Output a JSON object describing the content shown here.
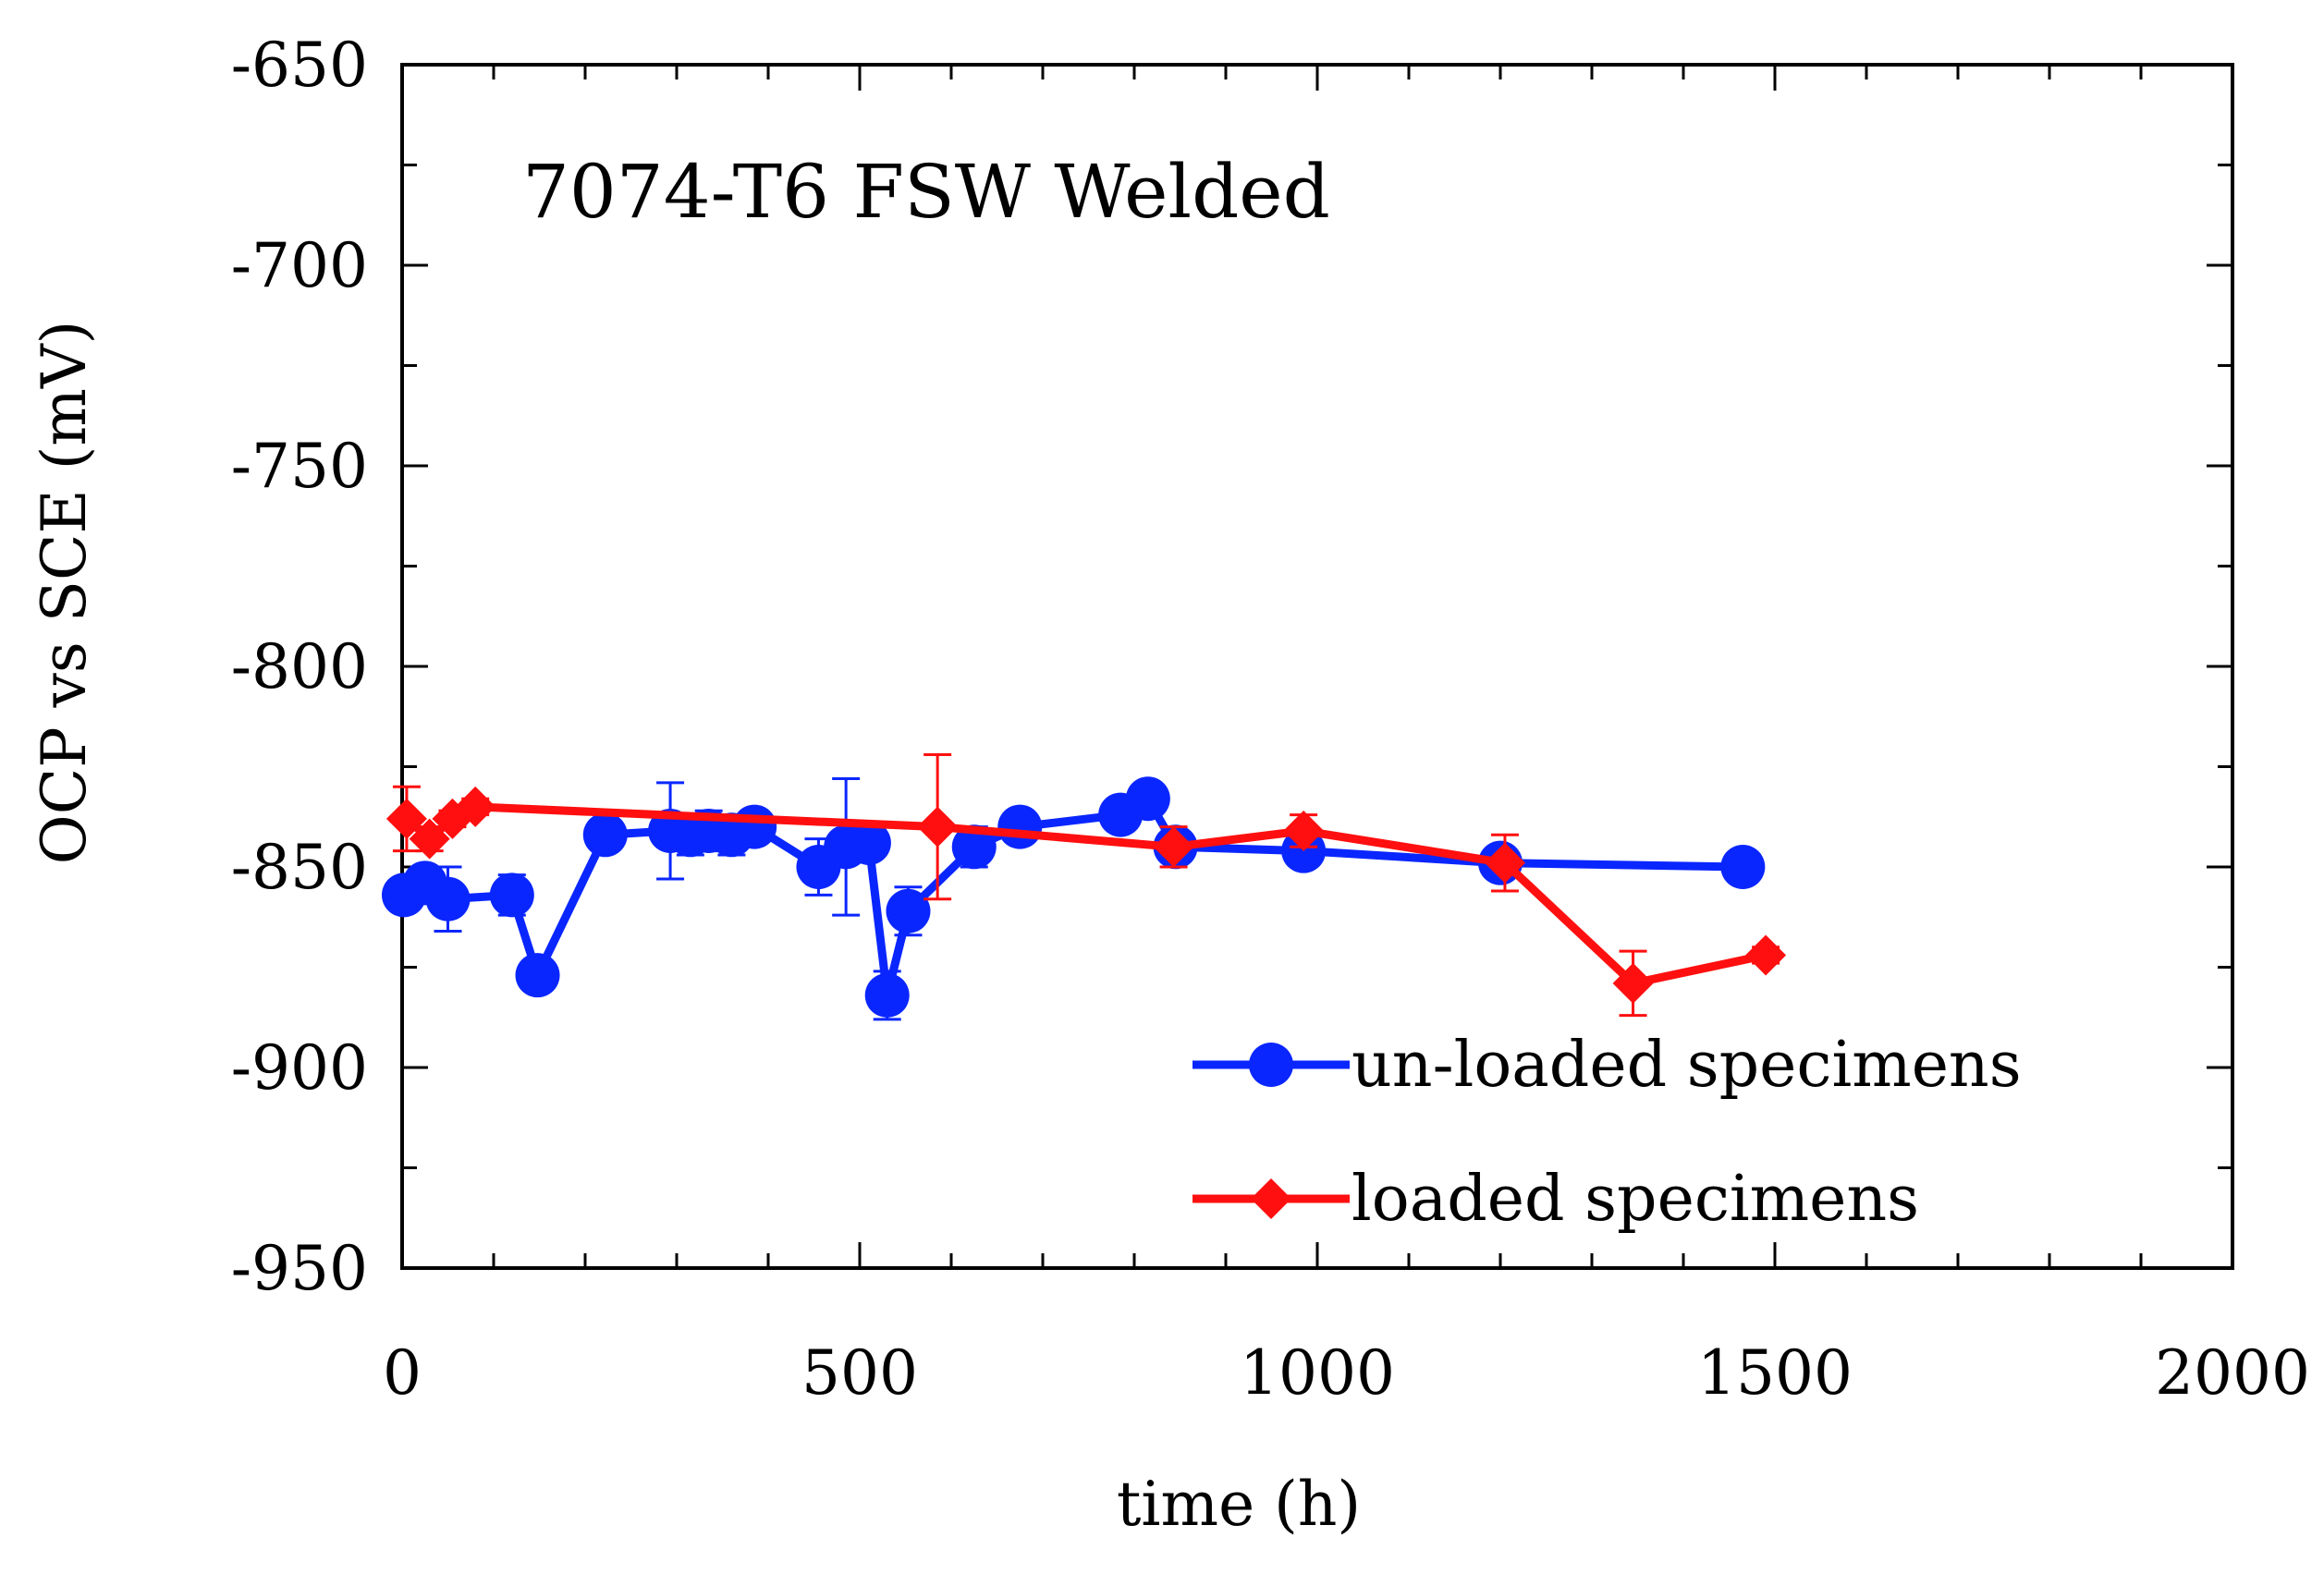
{
  "chart_data": {
    "type": "line",
    "title": "7074-T6 FSW Welded",
    "xlabel": "time (h)",
    "ylabel": "OCP vs SCE (mV)",
    "xlim": [
      0,
      2000
    ],
    "ylim": [
      -950,
      -650
    ],
    "xticks": [
      0,
      500,
      1000,
      1500,
      2000
    ],
    "yticks": [
      -650,
      -700,
      -750,
      -800,
      -850,
      -900,
      -950
    ],
    "xtick_labels": [
      "0",
      "500",
      "1000",
      "1500",
      "2000"
    ],
    "ytick_labels": [
      "-650",
      "-700",
      "-750",
      "-800",
      "-850",
      "-900",
      "-950"
    ],
    "legend_position": "bottom-right",
    "series": [
      {
        "name": "un-loaded specimens",
        "color": "#0a26ff",
        "marker": "circle",
        "points": [
          {
            "x": 2,
            "y": -857,
            "err": 3
          },
          {
            "x": 25,
            "y": -854,
            "err": 4
          },
          {
            "x": 50,
            "y": -858,
            "err": 8
          },
          {
            "x": 120,
            "y": -857,
            "err": 5
          },
          {
            "x": 148,
            "y": -877,
            "err": 4
          },
          {
            "x": 222,
            "y": -842,
            "err": 3
          },
          {
            "x": 293,
            "y": -841,
            "err": 12
          },
          {
            "x": 315,
            "y": -842,
            "err": 5
          },
          {
            "x": 335,
            "y": -841,
            "err": 5
          },
          {
            "x": 360,
            "y": -842,
            "err": 5
          },
          {
            "x": 385,
            "y": -840,
            "err": 4
          },
          {
            "x": 455,
            "y": -850,
            "err": 7
          },
          {
            "x": 485,
            "y": -845,
            "err": 17
          },
          {
            "x": 510,
            "y": -844,
            "err": 4
          },
          {
            "x": 530,
            "y": -882,
            "err": 6
          },
          {
            "x": 553,
            "y": -861,
            "err": 6
          },
          {
            "x": 625,
            "y": -845,
            "err": 5
          },
          {
            "x": 675,
            "y": -840,
            "err": 4
          },
          {
            "x": 785,
            "y": -837,
            "err": 4
          },
          {
            "x": 815,
            "y": -833,
            "err": 3
          },
          {
            "x": 845,
            "y": -845,
            "err": 3
          },
          {
            "x": 985,
            "y": -846,
            "err": 2
          },
          {
            "x": 1200,
            "y": -849,
            "err": 3
          },
          {
            "x": 1465,
            "y": -850,
            "err": 2
          }
        ]
      },
      {
        "name": "loaded specimens",
        "color": "#ff0f0f",
        "marker": "diamond",
        "points": [
          {
            "x": 5,
            "y": -838,
            "err": 8
          },
          {
            "x": 30,
            "y": -843,
            "err": 3
          },
          {
            "x": 55,
            "y": -838,
            "err": 2
          },
          {
            "x": 80,
            "y": -835,
            "err": 2
          },
          {
            "x": 585,
            "y": -840,
            "err": 18
          },
          {
            "x": 843,
            "y": -845,
            "err": 5
          },
          {
            "x": 985,
            "y": -841,
            "err": 4
          },
          {
            "x": 1205,
            "y": -849,
            "err": 7
          },
          {
            "x": 1345,
            "y": -879,
            "err": 8
          },
          {
            "x": 1490,
            "y": -872,
            "err": 2
          }
        ]
      }
    ]
  }
}
